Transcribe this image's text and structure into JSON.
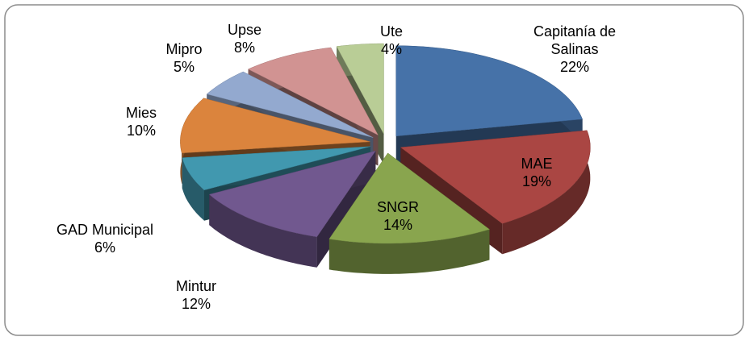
{
  "chart_data": {
    "type": "pie3d",
    "categories": [
      "Capitanía de Salinas",
      "MAE",
      "SNGR",
      "Mintur",
      "GAD Municipal",
      "Mies",
      "Mipro",
      "Upse",
      "Ute"
    ],
    "values": [
      22,
      19,
      14,
      12,
      6,
      10,
      5,
      8,
      4
    ],
    "value_labels": [
      "22%",
      "19%",
      "14%",
      "12%",
      "6%",
      "10%",
      "5%",
      "8%",
      "4%"
    ],
    "colors": [
      "#4672a8",
      "#aa4643",
      "#89a54e",
      "#71588f",
      "#4198af",
      "#db843d",
      "#93a9cf",
      "#d19392",
      "#b9cd96"
    ]
  }
}
